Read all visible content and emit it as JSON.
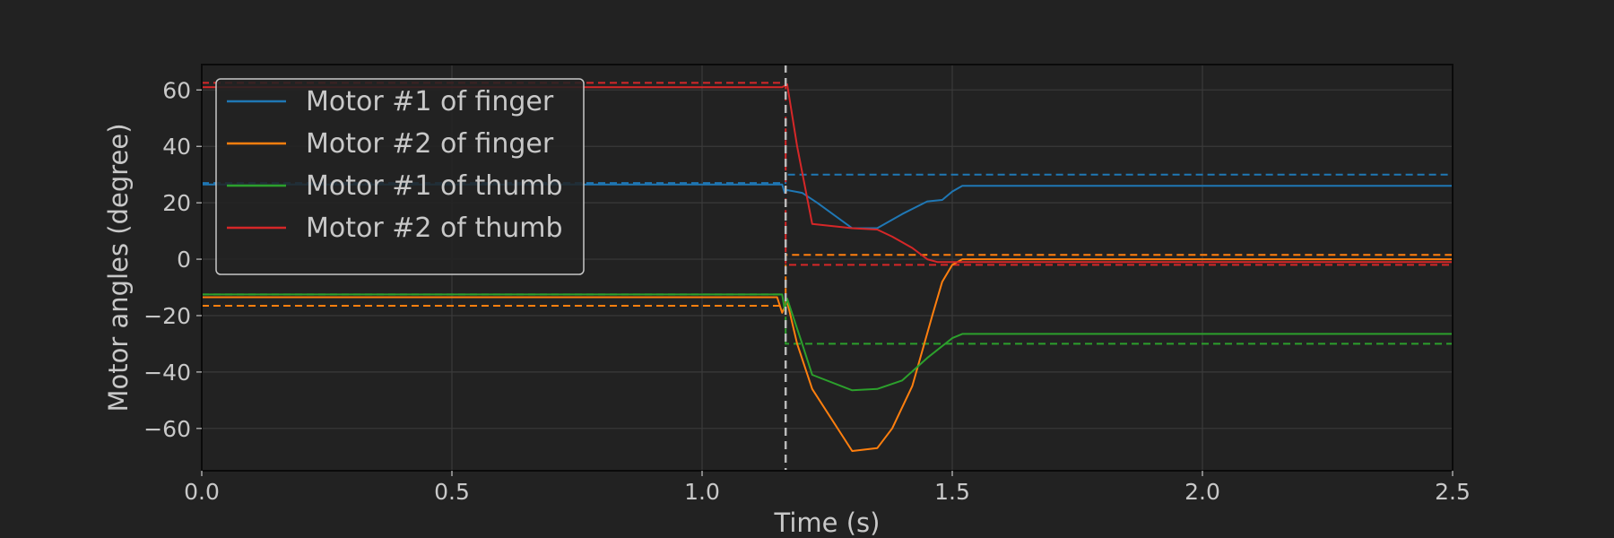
{
  "chart_data": {
    "type": "line",
    "xlabel": "Time (s)",
    "ylabel": "Motor angles (degree)",
    "xlim": [
      0,
      2.5
    ],
    "ylim": [
      -75,
      69
    ],
    "xticks": [
      0.0,
      0.5,
      1.0,
      1.5,
      2.0,
      2.5
    ],
    "xtick_labels": [
      "0.0",
      "0.5",
      "1.0",
      "1.5",
      "2.0",
      "2.5"
    ],
    "yticks": [
      -60,
      -40,
      -20,
      0,
      20,
      40,
      60
    ],
    "ytick_labels": [
      "−60",
      "−40",
      "−20",
      "0",
      "20",
      "40",
      "60"
    ],
    "grid": true,
    "legend_position": "top-left",
    "event_line": {
      "x": 1.167,
      "color": "#bbbbbb",
      "style": "dashed"
    },
    "series": [
      {
        "name": "Motor #1 of finger",
        "color": "#1f77b4",
        "x": [
          0,
          1.16,
          1.165,
          1.17,
          1.2,
          1.23,
          1.3,
          1.35,
          1.4,
          1.45,
          1.48,
          1.5,
          1.52,
          1.6,
          1.8,
          2.0,
          2.5
        ],
        "y": [
          26.5,
          26.5,
          23.5,
          24.5,
          23.5,
          20,
          11,
          11,
          16,
          20.5,
          21,
          24,
          26,
          26,
          26,
          26,
          26
        ],
        "target": {
          "x": [
            0,
            1.167,
            1.167,
            2.5
          ],
          "y": [
            27,
            27,
            30,
            30
          ]
        }
      },
      {
        "name": "Motor #2 of finger",
        "color": "#ff7f0e",
        "x": [
          0,
          1.15,
          1.16,
          1.17,
          1.19,
          1.22,
          1.3,
          1.35,
          1.38,
          1.42,
          1.46,
          1.48,
          1.5,
          1.52,
          1.6,
          2.5
        ],
        "y": [
          -13.5,
          -13.5,
          -19,
          -15,
          -30,
          -46,
          -68,
          -67,
          -60,
          -45,
          -20,
          -8,
          -2,
          0,
          0,
          0
        ],
        "target": {
          "x": [
            0,
            1.167,
            1.167,
            2.5
          ],
          "y": [
            -16.5,
            -16.5,
            1.5,
            1.5
          ]
        }
      },
      {
        "name": "Motor #1 of thumb",
        "color": "#2ca02c",
        "x": [
          0,
          1.16,
          1.165,
          1.17,
          1.2,
          1.22,
          1.3,
          1.35,
          1.4,
          1.45,
          1.5,
          1.52,
          2.0,
          2.5
        ],
        "y": [
          -12.5,
          -12.5,
          -18,
          -14,
          -30,
          -41,
          -46.5,
          -46,
          -43,
          -35,
          -28,
          -26.5,
          -26.5,
          -26.5
        ],
        "target": {
          "x": [
            0,
            1.167,
            1.167,
            2.5
          ],
          "y": [
            -12.5,
            -12.5,
            -30,
            -30
          ]
        }
      },
      {
        "name": "Motor #2 of thumb",
        "color": "#d62728",
        "x": [
          0,
          1.16,
          1.17,
          1.19,
          1.22,
          1.3,
          1.35,
          1.38,
          1.42,
          1.45,
          1.47,
          1.5,
          2.5
        ],
        "y": [
          61,
          61,
          62,
          40,
          12.5,
          11,
          10.5,
          8,
          4,
          0,
          -1,
          -1,
          -1
        ],
        "target": {
          "x": [
            0,
            1.167,
            1.167,
            2.5
          ],
          "y": [
            62.5,
            62.5,
            -2,
            -2
          ]
        }
      }
    ]
  }
}
